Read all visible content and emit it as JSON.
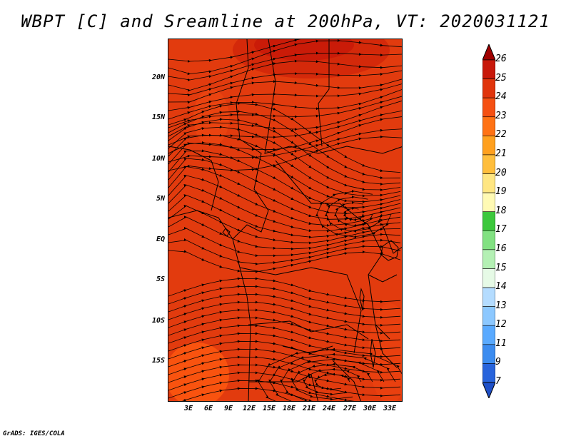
{
  "title": "WBPT [C] and Sreamline at 200hPa, VT: 2020031121",
  "credit": "GrADS: IGES/COLA",
  "map": {
    "lat_labels": [
      "20N",
      "15N",
      "10N",
      "5N",
      "EQ",
      "5S",
      "10S",
      "15S"
    ],
    "lon_labels": [
      "3E",
      "6E",
      "9E",
      "12E",
      "15E",
      "18E",
      "21E",
      "24E",
      "27E",
      "30E",
      "33E"
    ],
    "field": "WBPT",
    "field_units": "C",
    "level": "200hPa",
    "valid_time": "2020031121",
    "dominant_fill_color": "#e23b0e",
    "warm_core_color": "#bf0d07",
    "edge_color": "#ff5a10"
  },
  "colorbar": {
    "levels": [
      "26",
      "25",
      "24",
      "23",
      "22",
      "21",
      "20",
      "19",
      "18",
      "17",
      "16",
      "15",
      "14",
      "13",
      "12",
      "11",
      "9",
      "7"
    ],
    "colors": [
      "#a00000",
      "#c8180a",
      "#e0340c",
      "#f55012",
      "#ff7214",
      "#ffa01e",
      "#ffbe3c",
      "#ffe682",
      "#fffab4",
      "#3cc83c",
      "#82e182",
      "#b4f0b4",
      "#e6fae6",
      "#b4dcff",
      "#8cc8ff",
      "#5aaaff",
      "#3c8cf0",
      "#2864dc",
      "#1e50c8"
    ]
  }
}
